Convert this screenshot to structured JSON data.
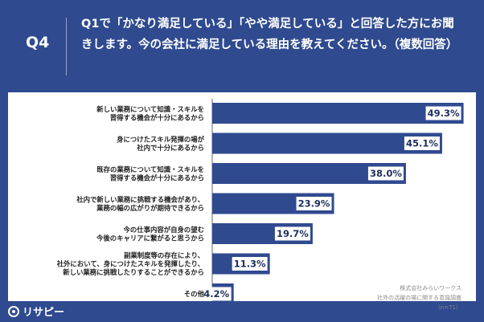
{
  "header": {
    "qnum": "Q4",
    "question": "Q1で「かなり満足している」「やや満足している」と回答した方にお聞きします。今の会社に満足している理由を教えてください。（複数回答）"
  },
  "chart_data": {
    "type": "bar",
    "orientation": "horizontal",
    "categories": [
      [
        "新しい業務について知識・スキルを",
        "習得する機会が十分にあるから"
      ],
      [
        "身につけたスキル発揮の場が",
        "社内で十分にあるから"
      ],
      [
        "既存の業務について知識・スキルを",
        "習得する機会が十分にあるから"
      ],
      [
        "社内で新しい業務に挑戦する機会があり、",
        "業務の幅の広がりが期待できるから"
      ],
      [
        "今の仕事内容が自身の望む",
        "今後のキャリアに繋がると思うから"
      ],
      [
        "副業制度等の存在により、",
        "社外において、身につけたスキルを発揮したり、",
        "新しい業務に挑戦したりすることができるから"
      ],
      [
        "その他"
      ]
    ],
    "values": [
      49.3,
      45.1,
      38.0,
      23.9,
      19.7,
      11.3,
      4.2
    ],
    "value_labels": [
      "49.3%",
      "45.1%",
      "38.0%",
      "23.9%",
      "19.7%",
      "11.3%",
      "4.2%"
    ],
    "xlim": [
      0,
      50
    ],
    "bar_color": "#2f4a8f",
    "label_bg": "#ffffff"
  },
  "source": {
    "line1": "株式会社みらいワークス",
    "line2": "社外の活躍の場に関する意識調査",
    "line3": "（n=71）"
  },
  "logo": {
    "text": "リサピー"
  }
}
